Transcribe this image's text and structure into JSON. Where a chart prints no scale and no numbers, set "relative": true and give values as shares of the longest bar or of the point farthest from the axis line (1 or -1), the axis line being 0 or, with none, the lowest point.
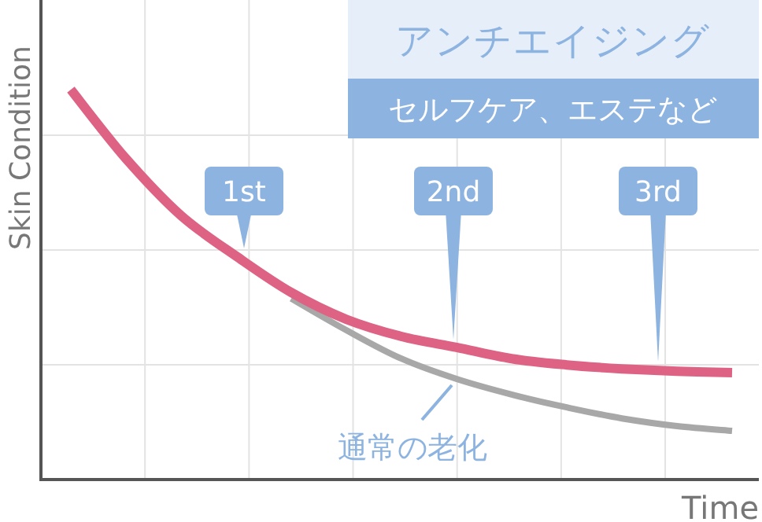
{
  "chart_data": {
    "type": "line",
    "relative": true,
    "xlabel": "Time",
    "ylabel": "Skin Condition",
    "grid": true,
    "title": "アンチエイジング",
    "categories": [
      null,
      null,
      null,
      null,
      null,
      null,
      null,
      null,
      null,
      null,
      null,
      null,
      null
    ],
    "series": [
      {
        "color": "#de6283",
        "values": [
          1.0,
          0.823,
          0.677,
          0.573,
          0.48,
          0.411,
          0.367,
          0.339,
          0.31,
          0.294,
          0.284,
          0.278,
          0.274
        ]
      },
      {
        "name": "通常の老化",
        "color": "#a8a8a8",
        "values": [
          null,
          null,
          null,
          null,
          0.464,
          0.383,
          0.31,
          0.258,
          0.218,
          0.185,
          0.157,
          0.137,
          0.125
        ]
      }
    ],
    "annotations": [
      "セルフケア、エステなど",
      {
        "text": "1st",
        "y": 0.573
      },
      {
        "text": "2nd",
        "y": 0.339
      },
      {
        "text": "3rd",
        "y": 0.281
      }
    ]
  }
}
